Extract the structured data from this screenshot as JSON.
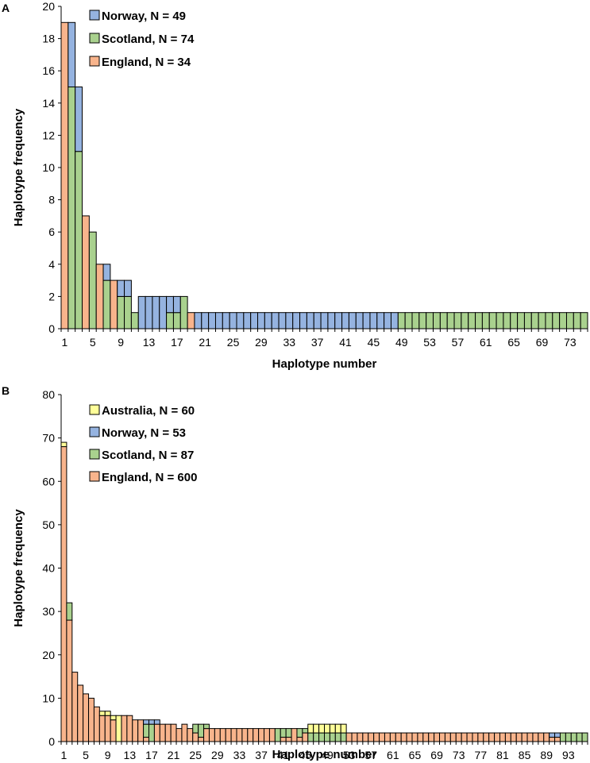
{
  "colors": {
    "Australia": "#ffff99",
    "Norway": "#95b3e0",
    "Scotland": "#a9d18e",
    "England": "#f8b48c",
    "outline": "#000000"
  },
  "chart_data": [
    {
      "type": "bar",
      "stacked": true,
      "panel": "A",
      "title": "",
      "xlabel": "Haplotype number",
      "ylabel": "Haplotype frequency",
      "ylim": [
        0,
        20
      ],
      "yticks": [
        0,
        2,
        4,
        6,
        8,
        10,
        12,
        14,
        16,
        18,
        20
      ],
      "xticks": [
        1,
        5,
        9,
        13,
        17,
        21,
        25,
        29,
        33,
        37,
        41,
        45,
        49,
        53,
        57,
        61,
        65,
        69,
        73
      ],
      "n_categories": 75,
      "legend_position": "top-left",
      "series_order": [
        "England",
        "Scotland",
        "Norway"
      ],
      "legend": [
        "Norway, N = 49",
        "Scotland, N = 74",
        "England, N = 34"
      ],
      "series": [
        {
          "name": "England",
          "values": [
            19,
            0,
            0,
            7,
            0,
            4,
            0,
            3,
            0,
            0,
            0,
            0,
            0,
            0,
            0,
            0,
            0,
            0,
            1,
            0,
            0,
            0,
            0,
            0,
            0,
            0,
            0,
            0,
            0,
            0,
            0,
            0,
            0,
            0,
            0,
            0,
            0,
            0,
            0,
            0,
            0,
            0,
            0,
            0,
            0,
            0,
            0,
            0,
            0,
            0,
            0,
            0,
            0,
            0,
            0,
            0,
            0,
            0,
            0,
            0,
            0,
            0,
            0,
            0,
            0,
            0,
            0,
            0,
            0,
            0,
            0,
            0,
            0,
            0,
            0
          ]
        },
        {
          "name": "Scotland",
          "values": [
            0,
            15,
            11,
            0,
            6,
            0,
            3,
            0,
            2,
            2,
            1,
            0,
            0,
            0,
            0,
            1,
            1,
            2,
            0,
            0,
            0,
            0,
            0,
            0,
            0,
            0,
            0,
            0,
            0,
            0,
            0,
            0,
            0,
            0,
            0,
            0,
            0,
            0,
            0,
            0,
            0,
            0,
            0,
            0,
            0,
            0,
            0,
            0,
            1,
            1,
            1,
            1,
            1,
            1,
            1,
            1,
            1,
            1,
            1,
            1,
            1,
            1,
            1,
            1,
            1,
            1,
            1,
            1,
            1,
            1,
            1,
            1,
            1,
            1,
            1
          ]
        },
        {
          "name": "Norway",
          "values": [
            0,
            4,
            4,
            0,
            0,
            0,
            1,
            0,
            1,
            1,
            0,
            2,
            2,
            2,
            2,
            1,
            1,
            0,
            0,
            1,
            1,
            1,
            1,
            1,
            1,
            1,
            1,
            1,
            1,
            1,
            1,
            1,
            1,
            1,
            1,
            1,
            1,
            1,
            1,
            1,
            1,
            1,
            1,
            1,
            1,
            1,
            1,
            1,
            0,
            0,
            0,
            0,
            0,
            0,
            0,
            0,
            0,
            0,
            0,
            0,
            0,
            0,
            0,
            0,
            0,
            0,
            0,
            0,
            0,
            0,
            0,
            0,
            0,
            0,
            0
          ]
        }
      ]
    },
    {
      "type": "bar",
      "stacked": true,
      "panel": "B",
      "title": "",
      "xlabel": "Haplotype number",
      "ylabel": "Haplotype frequency",
      "ylim": [
        0,
        80
      ],
      "yticks": [
        0,
        10,
        20,
        30,
        40,
        50,
        60,
        70,
        80
      ],
      "xticks": [
        1,
        5,
        9,
        13,
        17,
        21,
        25,
        29,
        33,
        37,
        41,
        45,
        49,
        53,
        57,
        61,
        65,
        69,
        73,
        77,
        81,
        85,
        89,
        93
      ],
      "n_categories": 96,
      "legend_position": "top-left",
      "series_order": [
        "England",
        "Scotland",
        "Norway",
        "Australia"
      ],
      "legend": [
        "Australia, N = 60",
        "Norway, N = 53",
        "Scotland, N = 87",
        "England, N = 600"
      ],
      "series": [
        {
          "name": "England",
          "values": [
            68,
            28,
            16,
            13,
            11,
            10,
            8,
            6,
            6,
            5,
            0,
            6,
            6,
            5,
            5,
            1,
            0,
            4,
            4,
            4,
            4,
            3,
            4,
            3,
            2,
            1,
            3,
            3,
            3,
            3,
            3,
            3,
            3,
            3,
            3,
            3,
            3,
            3,
            3,
            0,
            1,
            1,
            3,
            1,
            2,
            0,
            0,
            0,
            0,
            0,
            0,
            0,
            2,
            2,
            2,
            2,
            2,
            2,
            2,
            2,
            2,
            2,
            2,
            2,
            2,
            2,
            2,
            2,
            2,
            2,
            2,
            2,
            2,
            2,
            2,
            2,
            2,
            2,
            2,
            2,
            2,
            2,
            2,
            2,
            2,
            2,
            2,
            2,
            2,
            1,
            1,
            0,
            0,
            0,
            0,
            0
          ]
        },
        {
          "name": "Scotland",
          "values": [
            0,
            4,
            0,
            0,
            0,
            0,
            0,
            0,
            0,
            0,
            0,
            0,
            0,
            0,
            0,
            3,
            4,
            0,
            0,
            0,
            0,
            0,
            0,
            0,
            2,
            3,
            1,
            0,
            0,
            0,
            0,
            0,
            0,
            0,
            0,
            0,
            0,
            0,
            0,
            3,
            2,
            2,
            0,
            2,
            1,
            2,
            2,
            2,
            2,
            2,
            2,
            2,
            0,
            0,
            0,
            0,
            0,
            0,
            0,
            0,
            0,
            0,
            0,
            0,
            0,
            0,
            0,
            0,
            0,
            0,
            0,
            0,
            0,
            0,
            0,
            0,
            0,
            0,
            0,
            0,
            0,
            0,
            0,
            0,
            0,
            0,
            0,
            0,
            0,
            0,
            0,
            2,
            2,
            2,
            2,
            2
          ]
        },
        {
          "name": "Norway",
          "values": [
            0,
            0,
            0,
            0,
            0,
            0,
            0,
            0,
            0,
            0,
            0,
            0,
            0,
            0,
            0,
            1,
            1,
            1,
            0,
            0,
            0,
            0,
            0,
            0,
            0,
            0,
            0,
            0,
            0,
            0,
            0,
            0,
            0,
            0,
            0,
            0,
            0,
            0,
            0,
            0,
            0,
            0,
            0,
            0,
            0,
            0,
            0,
            0,
            0,
            0,
            0,
            0,
            0,
            0,
            0,
            0,
            0,
            0,
            0,
            0,
            0,
            0,
            0,
            0,
            0,
            0,
            0,
            0,
            0,
            0,
            0,
            0,
            0,
            0,
            0,
            0,
            0,
            0,
            0,
            0,
            0,
            0,
            0,
            0,
            0,
            0,
            0,
            0,
            0,
            1,
            1,
            0,
            0,
            0,
            0,
            0
          ]
        },
        {
          "name": "Australia",
          "values": [
            1,
            0,
            0,
            0,
            0,
            0,
            0,
            1,
            1,
            1,
            6,
            0,
            0,
            0,
            0,
            0,
            0,
            0,
            0,
            0,
            0,
            0,
            0,
            0,
            0,
            0,
            0,
            0,
            0,
            0,
            0,
            0,
            0,
            0,
            0,
            0,
            0,
            0,
            0,
            0,
            0,
            0,
            0,
            0,
            0,
            2,
            2,
            2,
            2,
            2,
            2,
            2,
            0,
            0,
            0,
            0,
            0,
            0,
            0,
            0,
            0,
            0,
            0,
            0,
            0,
            0,
            0,
            0,
            0,
            0,
            0,
            0,
            0,
            0,
            0,
            0,
            0,
            0,
            0,
            0,
            0,
            0,
            0,
            0,
            0,
            0,
            0,
            0,
            0,
            0,
            0,
            0,
            0,
            0,
            0,
            0
          ]
        }
      ]
    }
  ]
}
